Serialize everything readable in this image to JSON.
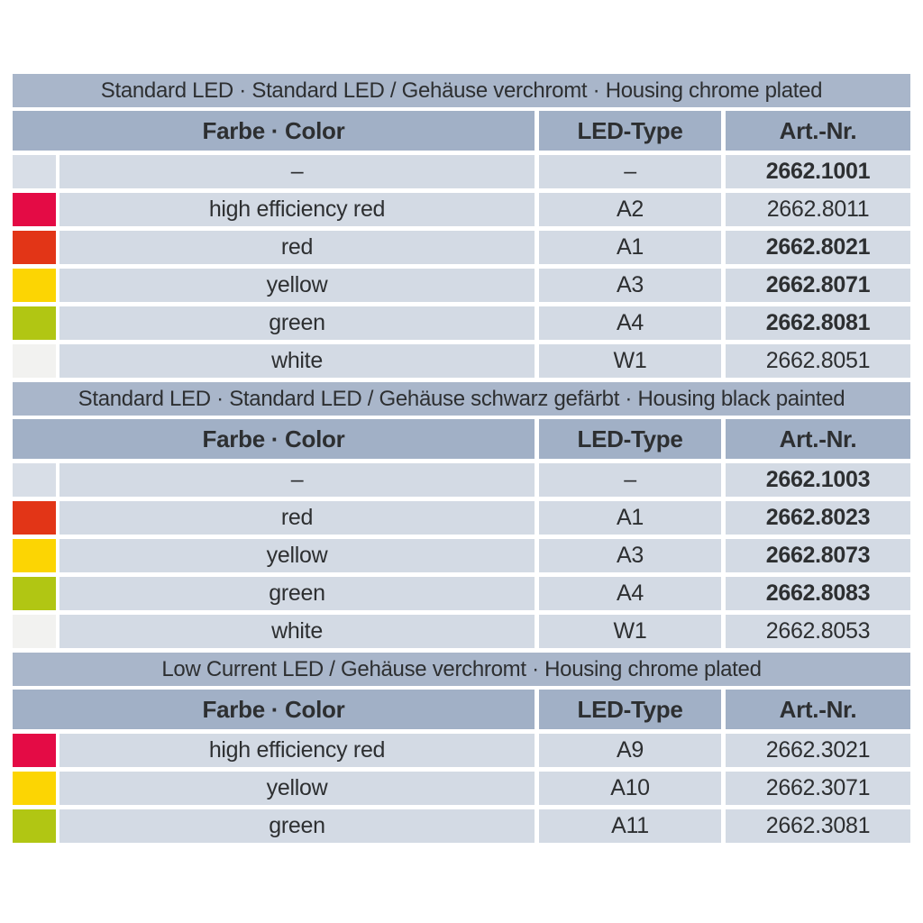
{
  "colors": {
    "title_bg": "#a9b6ca",
    "header_bg": "#a1b0c6",
    "row_bg": "#d3dae4",
    "text": "#2d2f31",
    "swatch_blank": "#d8dee7",
    "swatch_high_efficiency_red": "#e40b45",
    "swatch_red": "#e23517",
    "swatch_yellow": "#fcd503",
    "swatch_green": "#b1c613",
    "swatch_white": "#f2f2f0"
  },
  "tables": [
    {
      "title": "Standard LED · Standard LED / Gehäuse verchromt · Housing chrome plated",
      "headers": {
        "farbe": "Farbe · Color",
        "led": "LED-Type",
        "art": "Art.-Nr."
      },
      "rows": [
        {
          "swatch": "none",
          "swatch_color": "#d8dee7",
          "farbe": "–",
          "led_type": "–",
          "art_nr": "2662.1001",
          "art_bold": true
        },
        {
          "swatch": "high-efficiency-red",
          "swatch_color": "#e40b45",
          "farbe": "high efficiency red",
          "led_type": "A2",
          "art_nr": "2662.8011",
          "art_bold": false
        },
        {
          "swatch": "red",
          "swatch_color": "#e23517",
          "farbe": "red",
          "led_type": "A1",
          "art_nr": "2662.8021",
          "art_bold": true
        },
        {
          "swatch": "yellow",
          "swatch_color": "#fcd503",
          "farbe": "yellow",
          "led_type": "A3",
          "art_nr": "2662.8071",
          "art_bold": true
        },
        {
          "swatch": "green",
          "swatch_color": "#b1c613",
          "farbe": "green",
          "led_type": "A4",
          "art_nr": "2662.8081",
          "art_bold": true
        },
        {
          "swatch": "white",
          "swatch_color": "#f2f2f0",
          "farbe": "white",
          "led_type": "W1",
          "art_nr": "2662.8051",
          "art_bold": false
        }
      ]
    },
    {
      "title": "Standard LED · Standard LED / Gehäuse schwarz gefärbt · Housing black painted",
      "headers": {
        "farbe": "Farbe · Color",
        "led": "LED-Type",
        "art": "Art.-Nr."
      },
      "rows": [
        {
          "swatch": "none",
          "swatch_color": "#d8dee7",
          "farbe": "–",
          "led_type": "–",
          "art_nr": "2662.1003",
          "art_bold": true
        },
        {
          "swatch": "red",
          "swatch_color": "#e23517",
          "farbe": "red",
          "led_type": "A1",
          "art_nr": "2662.8023",
          "art_bold": true
        },
        {
          "swatch": "yellow",
          "swatch_color": "#fcd503",
          "farbe": "yellow",
          "led_type": "A3",
          "art_nr": "2662.8073",
          "art_bold": true
        },
        {
          "swatch": "green",
          "swatch_color": "#b1c613",
          "farbe": "green",
          "led_type": "A4",
          "art_nr": "2662.8083",
          "art_bold": true
        },
        {
          "swatch": "white",
          "swatch_color": "#f2f2f0",
          "farbe": "white",
          "led_type": "W1",
          "art_nr": "2662.8053",
          "art_bold": false
        }
      ]
    },
    {
      "title": "Low Current LED / Gehäuse verchromt · Housing chrome plated",
      "headers": {
        "farbe": "Farbe · Color",
        "led": "LED-Type",
        "art": "Art.-Nr."
      },
      "rows": [
        {
          "swatch": "high-efficiency-red",
          "swatch_color": "#e40b45",
          "farbe": "high efficiency red",
          "led_type": "A9",
          "art_nr": "2662.3021",
          "art_bold": false
        },
        {
          "swatch": "yellow",
          "swatch_color": "#fcd503",
          "farbe": "yellow",
          "led_type": "A10",
          "art_nr": "2662.3071",
          "art_bold": false
        },
        {
          "swatch": "green",
          "swatch_color": "#b1c613",
          "farbe": "green",
          "led_type": "A11",
          "art_nr": "2662.3081",
          "art_bold": false
        }
      ]
    }
  ]
}
